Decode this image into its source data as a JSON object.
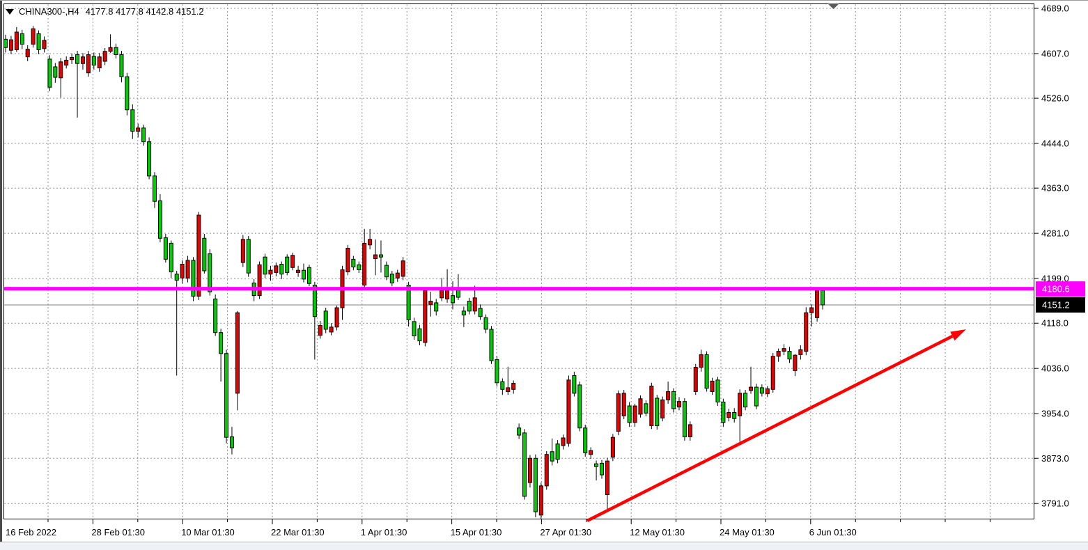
{
  "window": {
    "symbol_tf": "CHINA300-,H4",
    "ohlc_text": "4177.8 4177.8 4142.8 4151.2"
  },
  "chart_data": {
    "type": "candlestick",
    "symbol": "CHINA300-",
    "timeframe": "H4",
    "title": "CHINA300-,H4  4177.8 4177.8 4142.8 4151.2",
    "current_bar": {
      "open": 4177.8,
      "high": 4177.8,
      "low": 4142.8,
      "close": 4151.2
    },
    "price_convention": "red-up-green-down",
    "colors": {
      "bull_candle": "#e80000",
      "bear_candle": "#00ce00",
      "candle_outline": "#000000",
      "grid": "#909090",
      "horizontal_line": "#ff00ff",
      "current_price_line": "#808080",
      "current_price_tag_bg": "#000000",
      "trend_arrow": "#ff0000",
      "background": "#ffffff"
    },
    "y_axis": {
      "tick_labels": [
        "4689.0",
        "4607.0",
        "4526.0",
        "4444.0",
        "4363.0",
        "4281.0",
        "4199.0",
        "4118.0",
        "4036.0",
        "3954.0",
        "3873.0",
        "3791.0"
      ],
      "tick_values": [
        4689,
        4607,
        4526,
        4444,
        4363,
        4281,
        4199,
        4118,
        4036,
        3954,
        3873,
        3791
      ],
      "range": [
        3764,
        4700
      ]
    },
    "x_axis": {
      "labels": [
        "16 Feb 2022",
        "28 Feb 01:30",
        "10 Mar 01:30",
        "22 Mar 01:30",
        "1 Apr 01:30",
        "15 Apr 01:30",
        "27 Apr 01:30",
        "12 May 01:30",
        "24 May 01:30",
        "6 Jun 01:30"
      ]
    },
    "grid": true,
    "legend_position": "none",
    "horizontal_line": {
      "price": 4180.6,
      "label": "4180.6",
      "color": "#ff00ff"
    },
    "current_price": {
      "value": 4151.2,
      "label": "4151.2"
    },
    "trend_arrow": {
      "from_price": 3762,
      "to_price": 4105,
      "note": "rising red arrow from late-April low toward June",
      "color": "#ff0000"
    },
    "candles": [
      [
        4633,
        4641,
        4609,
        4618
      ],
      [
        4613,
        4639,
        4606,
        4632
      ],
      [
        4614,
        4655,
        4610,
        4646
      ],
      [
        4643,
        4650,
        4615,
        4624
      ],
      [
        4601,
        4622,
        4593,
        4615
      ],
      [
        4624,
        4657,
        4618,
        4652
      ],
      [
        4643,
        4649,
        4606,
        4614
      ],
      [
        4616,
        4638,
        4609,
        4631
      ],
      [
        4597,
        4604,
        4539,
        4546
      ],
      [
        4583,
        4590,
        4554,
        4564
      ],
      [
        4563,
        4599,
        4527,
        4592
      ],
      [
        4586,
        4602,
        4580,
        4595
      ],
      [
        4596,
        4607,
        4588,
        4600
      ],
      [
        4605,
        4612,
        4491,
        4589
      ],
      [
        4589,
        4608,
        4578,
        4601
      ],
      [
        4572,
        4612,
        4565,
        4605
      ],
      [
        4602,
        4609,
        4578,
        4586
      ],
      [
        4581,
        4608,
        4574,
        4601
      ],
      [
        4593,
        4617,
        4586,
        4611
      ],
      [
        4611,
        4642,
        4608,
        4618
      ],
      [
        4618,
        4625,
        4598,
        4605
      ],
      [
        4605,
        4612,
        4555,
        4565
      ],
      [
        4565,
        4572,
        4495,
        4505
      ],
      [
        4505,
        4515,
        4452,
        4466
      ],
      [
        4466,
        4480,
        4455,
        4472
      ],
      [
        4472,
        4478,
        4440,
        4447
      ],
      [
        4447,
        4455,
        4379,
        4385
      ],
      [
        4385,
        4392,
        4327,
        4339
      ],
      [
        4340,
        4352,
        4265,
        4272
      ],
      [
        4273,
        4280,
        4228,
        4234
      ],
      [
        4263,
        4268,
        4200,
        4211
      ],
      [
        4207,
        4213,
        4023,
        4196
      ],
      [
        4200,
        4232,
        4190,
        4225
      ],
      [
        4200,
        4240,
        4192,
        4232
      ],
      [
        4232,
        4238,
        4158,
        4167
      ],
      [
        4167,
        4320,
        4160,
        4314
      ],
      [
        4272,
        4280,
        4208,
        4213
      ],
      [
        4244,
        4252,
        4168,
        4175
      ],
      [
        4162,
        4170,
        4095,
        4101
      ],
      [
        4101,
        4108,
        4012,
        4063
      ],
      [
        4063,
        4070,
        3900,
        3911
      ],
      [
        3912,
        3930,
        3880,
        3892
      ],
      [
        3991,
        4140,
        3960,
        4137
      ],
      [
        4228,
        4278,
        4220,
        4270
      ],
      [
        4270,
        4276,
        4202,
        4209
      ],
      [
        4191,
        4198,
        4158,
        4168
      ],
      [
        4168,
        4230,
        4162,
        4224
      ],
      [
        4238,
        4244,
        4200,
        4207
      ],
      [
        4207,
        4222,
        4195,
        4214
      ],
      [
        4210,
        4228,
        4203,
        4222
      ],
      [
        4225,
        4230,
        4198,
        4207
      ],
      [
        4238,
        4243,
        4205,
        4210
      ],
      [
        4219,
        4246,
        4214,
        4241
      ],
      [
        4210,
        4222,
        4202,
        4214
      ],
      [
        4214,
        4226,
        4192,
        4198
      ],
      [
        4219,
        4224,
        4185,
        4190
      ],
      [
        4187,
        4193,
        4052,
        4130
      ],
      [
        4096,
        4122,
        4090,
        4114
      ],
      [
        4140,
        4146,
        4100,
        4107
      ],
      [
        4102,
        4118,
        4096,
        4111
      ],
      [
        4111,
        4150,
        4105,
        4146
      ],
      [
        4146,
        4222,
        4124,
        4215
      ],
      [
        4211,
        4260,
        4205,
        4254
      ],
      [
        4234,
        4240,
        4214,
        4220
      ],
      [
        4224,
        4230,
        4209,
        4215
      ],
      [
        4187,
        4289,
        4180,
        4263
      ],
      [
        4260,
        4289,
        4252,
        4270
      ],
      [
        4235,
        4270,
        4205,
        4242
      ],
      [
        4242,
        4268,
        4210,
        4238
      ],
      [
        4223,
        4230,
        4196,
        4202
      ],
      [
        4207,
        4213,
        4185,
        4191
      ],
      [
        4200,
        4215,
        4193,
        4209
      ],
      [
        4203,
        4238,
        4196,
        4231
      ],
      [
        4187,
        4193,
        4112,
        4124
      ],
      [
        4121,
        4128,
        4088,
        4095
      ],
      [
        4108,
        4115,
        4078,
        4086
      ],
      [
        4083,
        4183,
        4076,
        4177
      ],
      [
        4152,
        4175,
        4130,
        4158
      ],
      [
        4155,
        4162,
        4132,
        4140
      ],
      [
        4164,
        4200,
        4158,
        4177
      ],
      [
        4162,
        4216,
        4155,
        4178
      ],
      [
        4168,
        4194,
        4143,
        4155
      ],
      [
        4178,
        4207,
        4160,
        4165
      ],
      [
        4140,
        4148,
        4111,
        4133
      ],
      [
        4158,
        4164,
        4134,
        4140
      ],
      [
        4140,
        4186,
        4134,
        4164
      ],
      [
        4145,
        4152,
        4124,
        4130
      ],
      [
        4128,
        4134,
        4100,
        4107
      ],
      [
        4107,
        4113,
        4044,
        4050
      ],
      [
        4052,
        4058,
        4003,
        4010
      ],
      [
        4012,
        4018,
        3988,
        3998
      ],
      [
        3994,
        4039,
        3988,
        4001
      ],
      [
        3998,
        4014,
        3990,
        4009
      ],
      [
        3928,
        3936,
        3908,
        3915
      ],
      [
        3919,
        3926,
        3798,
        3804
      ],
      [
        3829,
        3879,
        3820,
        3873
      ],
      [
        3873,
        3880,
        3766,
        3776
      ],
      [
        3770,
        3829,
        3763,
        3823
      ],
      [
        3823,
        3886,
        3816,
        3880
      ],
      [
        3885,
        3909,
        3860,
        3868
      ],
      [
        3899,
        3906,
        3864,
        3871
      ],
      [
        3896,
        3916,
        3889,
        3910
      ],
      [
        3900,
        4023,
        3894,
        4015
      ],
      [
        4023,
        4030,
        3985,
        3991
      ],
      [
        4006,
        4012,
        3922,
        3928
      ],
      [
        3928,
        3934,
        3876,
        3883
      ],
      [
        3880,
        3893,
        3872,
        3887
      ],
      [
        3863,
        3869,
        3833,
        3858
      ],
      [
        3864,
        3870,
        3836,
        3843
      ],
      [
        3807,
        3874,
        3779,
        3868
      ],
      [
        3875,
        3917,
        3868,
        3911
      ],
      [
        3922,
        3996,
        3915,
        3990
      ],
      [
        3950,
        3997,
        3944,
        3991
      ],
      [
        3968,
        3975,
        3930,
        3938
      ],
      [
        3938,
        3972,
        3930,
        3968
      ],
      [
        3953,
        3987,
        3947,
        3981
      ],
      [
        3972,
        3978,
        3949,
        3955
      ],
      [
        3932,
        4010,
        3926,
        4004
      ],
      [
        3982,
        3988,
        3925,
        3932
      ],
      [
        3946,
        3985,
        3940,
        3979
      ],
      [
        3979,
        4012,
        3972,
        3994
      ],
      [
        3994,
        4000,
        3956,
        3963
      ],
      [
        3966,
        3984,
        3960,
        3976
      ],
      [
        3976,
        3982,
        3905,
        3912
      ],
      [
        3912,
        3940,
        3905,
        3934
      ],
      [
        3994,
        4044,
        3988,
        4038
      ],
      [
        4038,
        4070,
        4030,
        4061
      ],
      [
        4061,
        4067,
        3994,
        4000
      ],
      [
        3994,
        4019,
        3988,
        4013
      ],
      [
        4015,
        4021,
        3968,
        3975
      ],
      [
        3975,
        3981,
        3930,
        3938
      ],
      [
        3947,
        3963,
        3940,
        3956
      ],
      [
        3956,
        3964,
        3938,
        3945
      ],
      [
        3950,
        3998,
        3903,
        3991
      ],
      [
        3991,
        3997,
        3960,
        3966
      ],
      [
        3996,
        4039,
        3990,
        4002
      ],
      [
        4002,
        4008,
        3962,
        3968
      ],
      [
        4001,
        4007,
        3985,
        3991
      ],
      [
        3990,
        4004,
        3984,
        3999
      ],
      [
        3998,
        4064,
        3992,
        4058
      ],
      [
        4058,
        4072,
        4048,
        4067
      ],
      [
        4067,
        4080,
        4060,
        4072
      ],
      [
        4067,
        4075,
        4046,
        4053
      ],
      [
        4032,
        4062,
        4022,
        4060
      ],
      [
        4061,
        4078,
        4052,
        4070
      ],
      [
        4067,
        4147,
        4060,
        4137
      ],
      [
        4137,
        4152,
        4112,
        4146
      ],
      [
        4128,
        4179,
        4121,
        4177.8
      ],
      [
        4177.8,
        4177.8,
        4142.8,
        4151.2
      ]
    ]
  }
}
